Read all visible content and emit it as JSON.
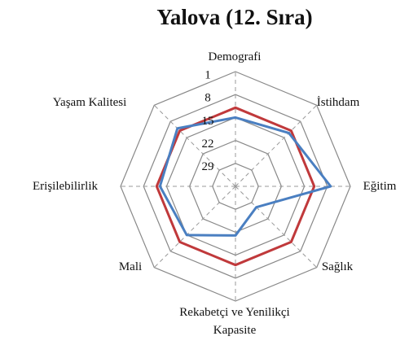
{
  "chart_data": {
    "type": "radar",
    "title": "Yalova (12. Sıra)",
    "categories": [
      "Demografi",
      "İstihdam",
      "Eğitim",
      "Sağlık",
      "Rekabetçi ve Yenilikçi Kapasite",
      "Mali",
      "Erişilebilirlik",
      "Yaşam Kalitesi"
    ],
    "rlim": [
      36,
      1
    ],
    "rticks": [
      1,
      8,
      15,
      22,
      29
    ],
    "grid": true,
    "series": [
      {
        "color": "#c0393b",
        "values": [
          12,
          12,
          12,
          12,
          12,
          12,
          12,
          12
        ]
      },
      {
        "color": "#4a7fc1",
        "values": [
          15,
          13,
          7,
          27,
          21,
          15,
          13,
          11
        ]
      }
    ]
  }
}
